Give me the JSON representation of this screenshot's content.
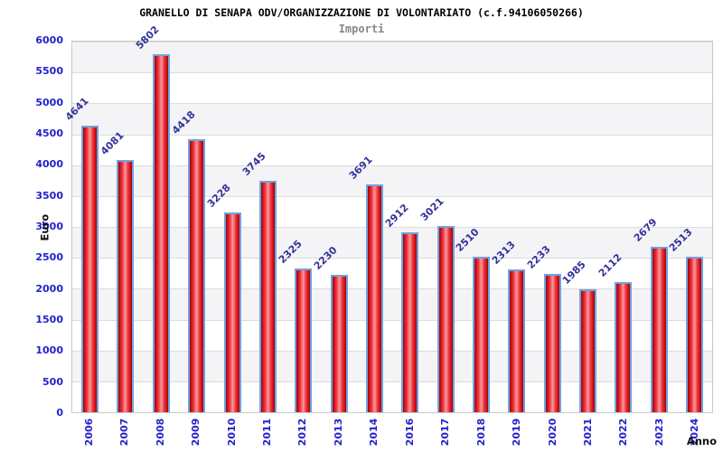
{
  "header": {
    "title": "GRANELLO DI SENAPA ODV/ORGANIZZAZIONE DI VOLONTARIATO (c.f.94106050266)",
    "subtitle": "Importi"
  },
  "chart_data": {
    "type": "bar",
    "title": "Importi",
    "categories": [
      "2006",
      "2007",
      "2008",
      "2009",
      "2010",
      "2011",
      "2012",
      "2013",
      "2014",
      "2016",
      "2017",
      "2018",
      "2019",
      "2020",
      "2021",
      "2022",
      "2023",
      "2024"
    ],
    "values": [
      4641,
      4081,
      5802,
      4418,
      3228,
      3745,
      2325,
      2230,
      3691,
      2912,
      3021,
      2510,
      2313,
      2233,
      1985,
      2112,
      2679,
      2513
    ],
    "xlabel": "Anno",
    "ylabel": "Euro",
    "ylim": [
      0,
      6000
    ],
    "ytick_step": 500,
    "grid": true,
    "legend_position": "none",
    "colors": {
      "bar_border": "#6fa3e0",
      "bar_gradient_dark": "#8e0b10",
      "bar_gradient_mid": "#e11b22",
      "bar_gradient_light": "#f89b9e",
      "axis_tick_label": "#2222cc",
      "value_label": "#333399",
      "band_gray": "#f4f4f6",
      "gridline": "#dcdcdc",
      "title_color": "#000000",
      "subtitle_color": "#878787"
    }
  }
}
